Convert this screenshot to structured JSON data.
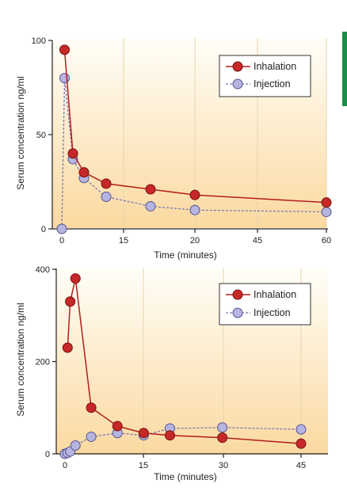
{
  "colors": {
    "inhalation": "#b11d1d",
    "inhalation_fill": "#c62828",
    "injection": "#7a78b8",
    "injection_fill": "#b6b4e0",
    "gradient_top": "#fffef8",
    "gradient_bottom": "#fbd9a0",
    "tab": "#1a8f4a"
  },
  "chart_data": [
    {
      "type": "line",
      "xlabel": "Time (minutes)",
      "ylabel": "Serum concentration ng/ml",
      "xtick_labels": [
        "0",
        "15",
        "20",
        "45",
        "60"
      ],
      "ytick_labels": [
        "0",
        "50",
        "100"
      ],
      "ylim": [
        0,
        100
      ],
      "legend_position": "top-right",
      "series": [
        {
          "name": "Inhalation",
          "points": [
            [
              0.5,
              95
            ],
            [
              2,
              40
            ],
            [
              4,
              30
            ],
            [
              8,
              24
            ],
            [
              16,
              21
            ],
            [
              24,
              18
            ],
            [
              48,
              14
            ]
          ]
        },
        {
          "name": "Injection",
          "points": [
            [
              0,
              0
            ],
            [
              0.5,
              80
            ],
            [
              2,
              37
            ],
            [
              4,
              27
            ],
            [
              8,
              17
            ],
            [
              16,
              12
            ],
            [
              24,
              10
            ],
            [
              48,
              9
            ]
          ]
        }
      ]
    },
    {
      "type": "line",
      "xlabel": "Time (minutes)",
      "ylabel": "Serum concentration ng/ml",
      "xtick_labels": [
        "0",
        "15",
        "30",
        "45"
      ],
      "ytick_labels": [
        "0",
        "200",
        "400"
      ],
      "ylim": [
        0,
        400
      ],
      "legend_position": "top-right",
      "series": [
        {
          "name": "Inhalation",
          "points": [
            [
              0.5,
              230
            ],
            [
              1,
              330
            ],
            [
              2,
              380
            ],
            [
              5,
              100
            ],
            [
              10,
              60
            ],
            [
              15,
              45
            ],
            [
              20,
              40
            ],
            [
              30,
              35
            ],
            [
              45,
              22
            ]
          ]
        },
        {
          "name": "Injection",
          "points": [
            [
              0,
              0
            ],
            [
              0.5,
              2
            ],
            [
              1,
              5
            ],
            [
              2,
              18
            ],
            [
              5,
              37
            ],
            [
              10,
              45
            ],
            [
              15,
              40
            ],
            [
              20,
              55
            ],
            [
              30,
              57
            ],
            [
              45,
              53
            ]
          ]
        }
      ]
    }
  ]
}
